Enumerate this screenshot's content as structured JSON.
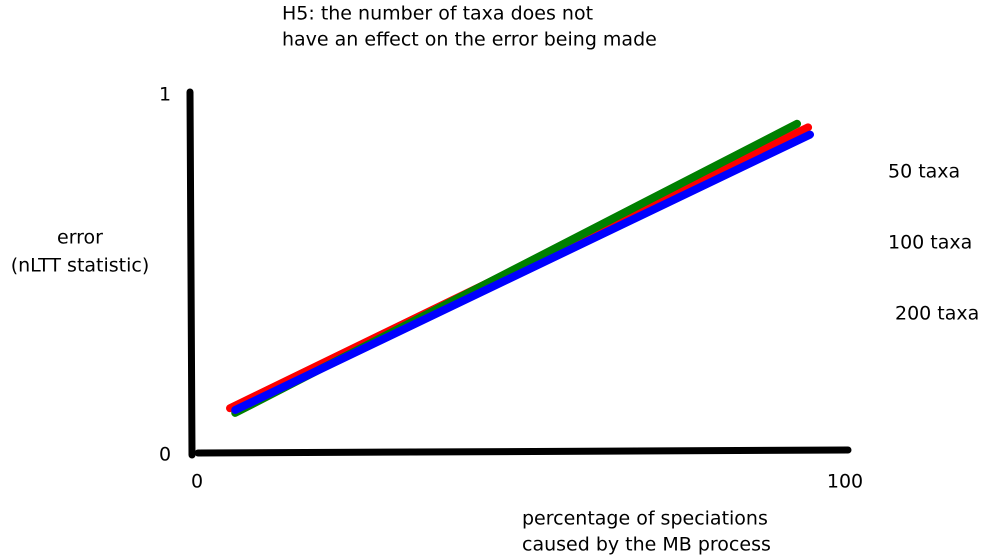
{
  "chart_data": {
    "type": "line",
    "title": [
      "H5: the number of taxa does not",
      "have an effect on the error being made"
    ],
    "ylabel": [
      "error",
      "(nLTT statistic)"
    ],
    "xlabel": [
      "percentage of speciations",
      "caused by the MB process"
    ],
    "xlim": [
      0,
      100
    ],
    "ylim": [
      0,
      1
    ],
    "xticks": [
      0,
      100
    ],
    "yticks": [
      0,
      1
    ],
    "series": [
      {
        "name": "50 taxa",
        "color": "#ff0000",
        "x": [
          5.1,
          94.3
        ],
        "values": [
          0.13,
          0.91
        ]
      },
      {
        "name": "100 taxa",
        "color": "#008000",
        "x": [
          5.9,
          92.6
        ],
        "values": [
          0.117,
          0.92
        ]
      },
      {
        "name": "200 taxa",
        "color": "#0000ff",
        "x": [
          5.9,
          94.6
        ],
        "values": [
          0.125,
          0.89
        ]
      }
    ]
  }
}
